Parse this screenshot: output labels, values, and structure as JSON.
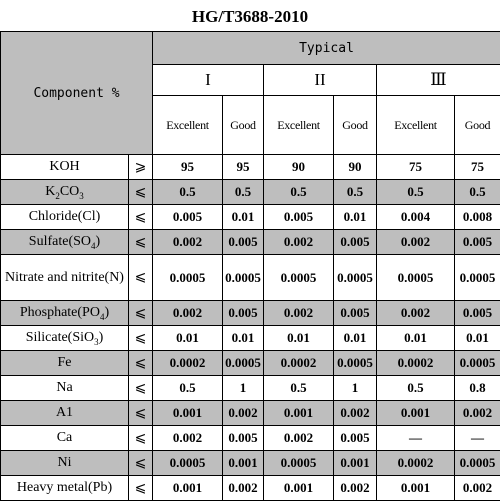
{
  "title": "HG/T3688-2010",
  "header": {
    "component_label": "Component  %",
    "typical_label": "Typical",
    "grade_I": "I",
    "grade_II": "II",
    "grade_III": "Ⅲ",
    "excellent_label": "Excellent",
    "good_label": "Good"
  },
  "rows": [
    {
      "name": "KOH",
      "op": "⩾",
      "values": [
        "95",
        "95",
        "90",
        "90",
        "75",
        "75"
      ]
    },
    {
      "name_main": "K",
      "name_sub1": "2",
      "name_mid": "CO",
      "name_sub2": "3",
      "op": "⩽",
      "values": [
        "0.5",
        "0.5",
        "0.5",
        "0.5",
        "0.5",
        "0.5"
      ]
    },
    {
      "name": "Chloride(Cl)",
      "op": "⩽",
      "values": [
        "0.005",
        "0.01",
        "0.005",
        "0.01",
        "0.004",
        "0.008"
      ]
    },
    {
      "name_main": "Sulfate(SO",
      "name_sub": "4",
      "name_end": ")",
      "op": "⩽",
      "values": [
        "0.002",
        "0.005",
        "0.002",
        "0.005",
        "0.002",
        "0.005"
      ]
    },
    {
      "name": "Nitrate and nitrite(N)",
      "op": "⩽",
      "values": [
        "0.0005",
        "0.0005",
        "0.0005",
        "0.0005",
        "0.0005",
        "0.0005"
      ]
    },
    {
      "name_main": "Phosphate(PO",
      "name_sub": "4",
      "name_end": ")",
      "op": "⩽",
      "values": [
        "0.002",
        "0.005",
        "0.002",
        "0.005",
        "0.002",
        "0.005"
      ]
    },
    {
      "name_main": "Silicate(SiO",
      "name_sub": "3",
      "name_end": ")",
      "op": "⩽",
      "values": [
        "0.01",
        "0.01",
        "0.01",
        "0.01",
        "0.01",
        "0.01"
      ]
    },
    {
      "name": "Fe",
      "op": "⩽",
      "values": [
        "0.0002",
        "0.0005",
        "0.0002",
        "0.0005",
        "0.0002",
        "0.0005"
      ]
    },
    {
      "name": "Na",
      "op": "⩽",
      "values": [
        "0.5",
        "1",
        "0.5",
        "1",
        "0.5",
        "0.8"
      ]
    },
    {
      "name": "A1",
      "op": "⩽",
      "values": [
        "0.001",
        "0.002",
        "0.001",
        "0.002",
        "0.001",
        "0.002"
      ]
    },
    {
      "name": "Ca",
      "op": "⩽",
      "values": [
        "0.002",
        "0.005",
        "0.002",
        "0.005",
        "—",
        "—"
      ]
    },
    {
      "name": "Ni",
      "op": "⩽",
      "values": [
        "0.0005",
        "0.001",
        "0.0005",
        "0.001",
        "0.0002",
        "0.0005"
      ]
    },
    {
      "name": "Heavy metal(Pb)",
      "op": "⩽",
      "values": [
        "0.001",
        "0.002",
        "0.001",
        "0.002",
        "0.001",
        "0.002"
      ]
    }
  ]
}
